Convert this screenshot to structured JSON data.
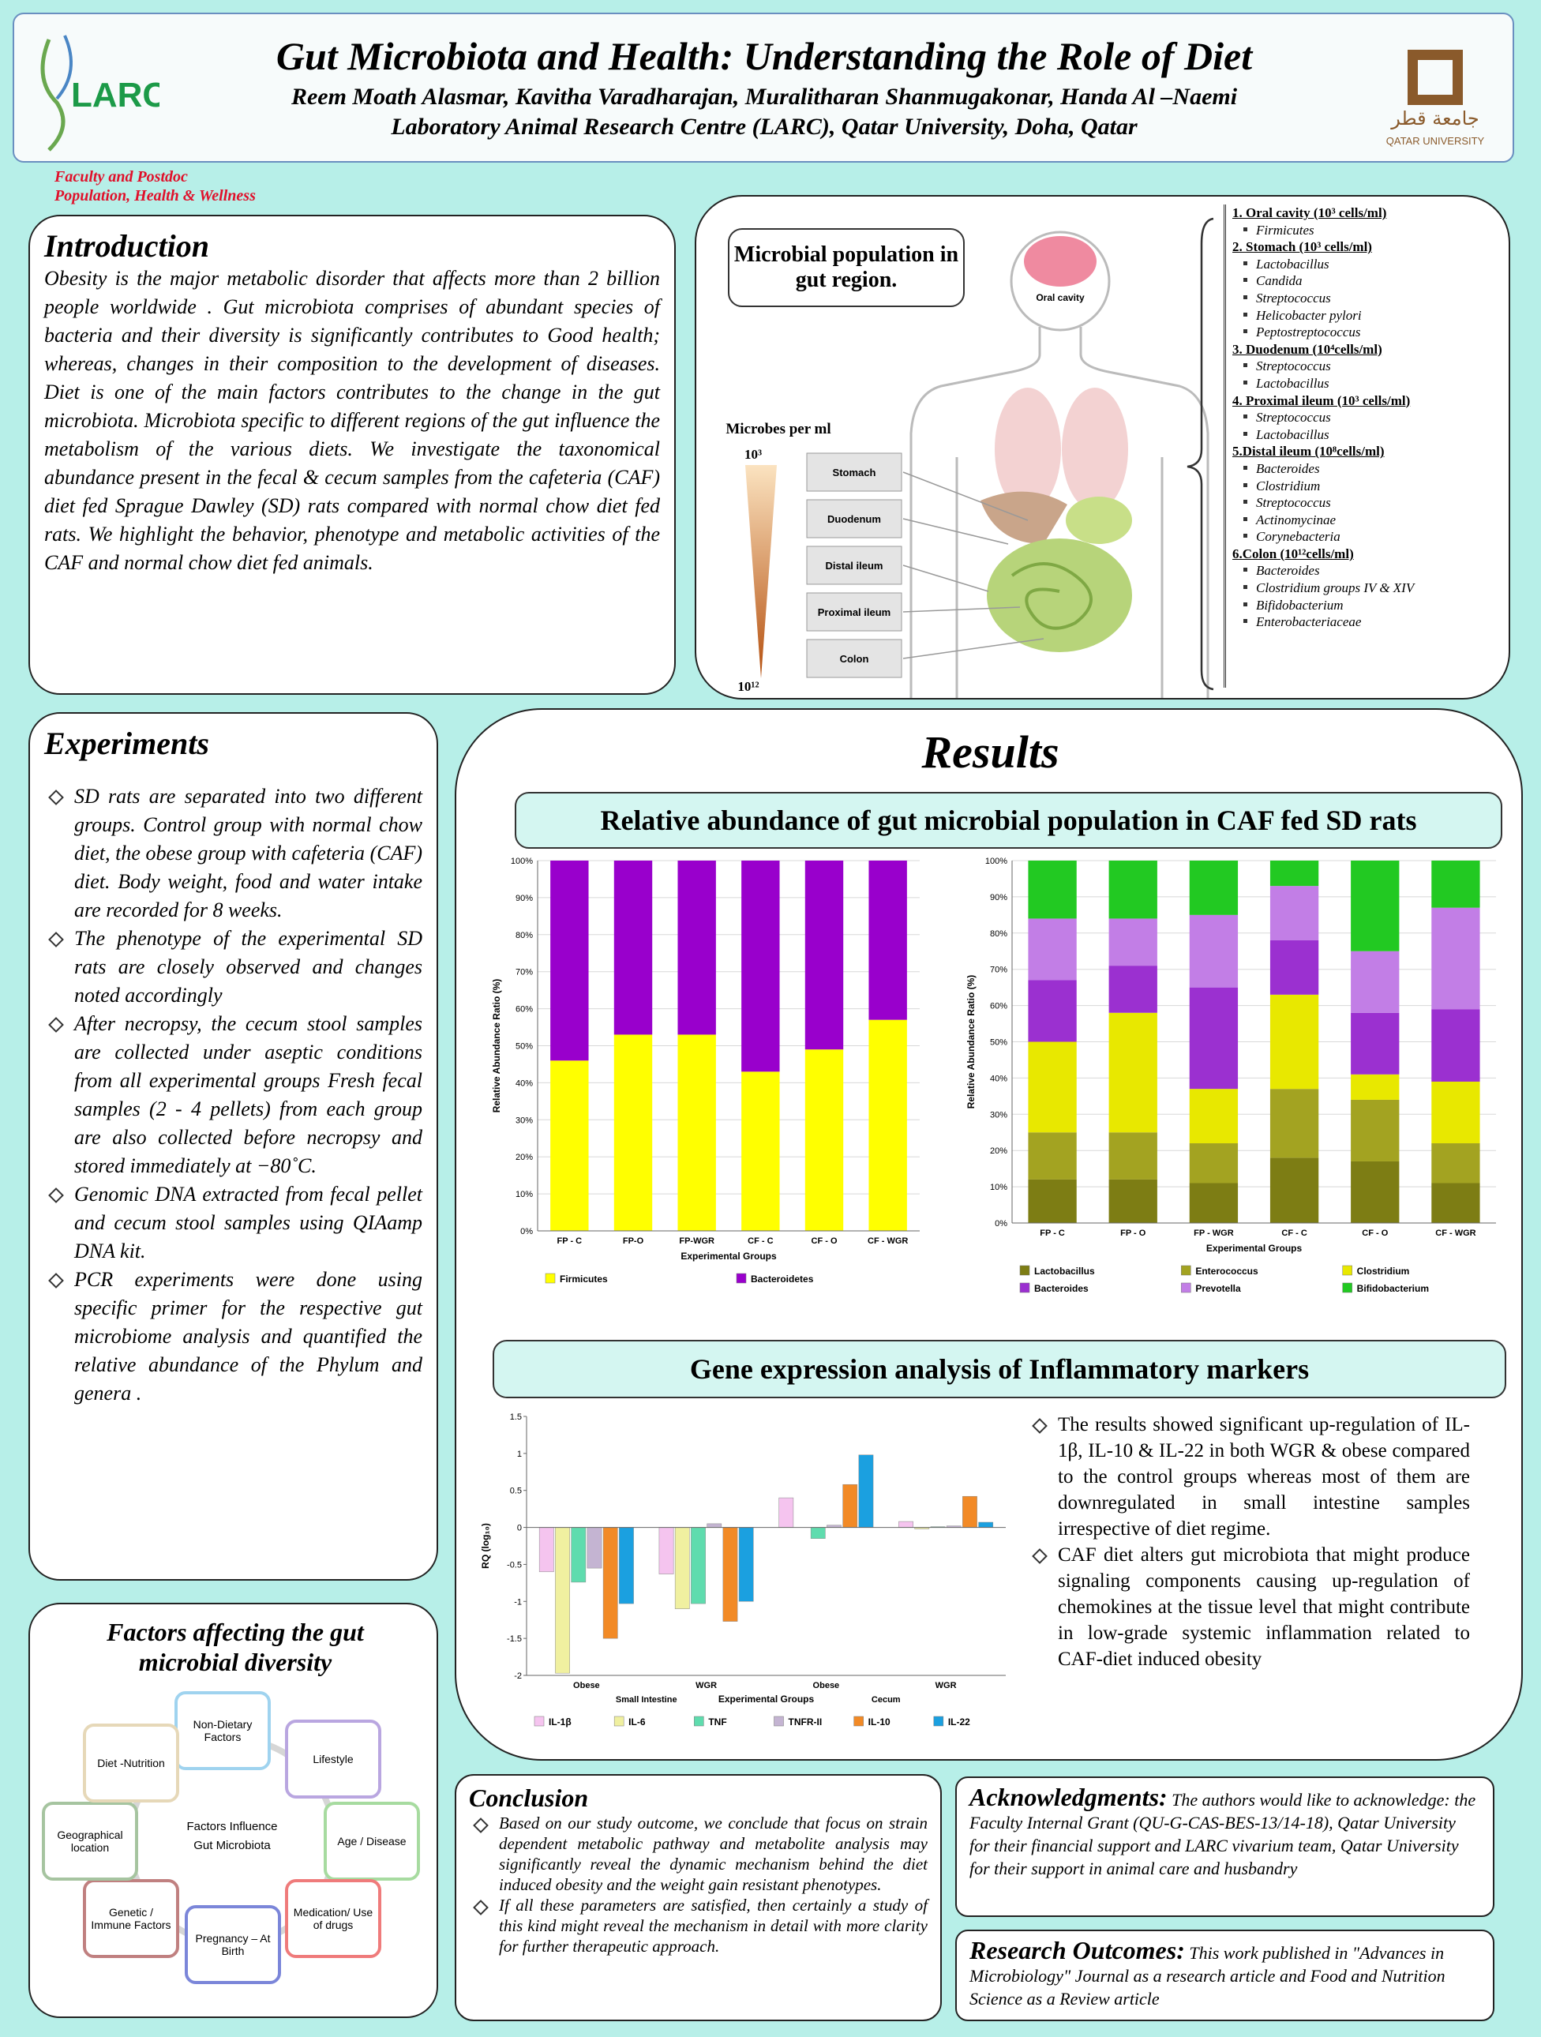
{
  "header": {
    "title": "Gut Microbiota and Health: Understanding the Role of Diet",
    "authors": "Reem Moath Alasmar, Kavitha Varadharajan, Muralitharan Shanmugakonar, Handa Al –Naemi",
    "affiliation": "Laboratory Animal Research Centre (LARC), Qatar University, Doha, Qatar",
    "logo_left": "LARC",
    "logo_right": [
      "جامعة قطر",
      "QATAR UNIVERSITY"
    ],
    "track": [
      "Faculty and Postdoc",
      "Population, Health & Wellness"
    ]
  },
  "introduction": {
    "heading": "Introduction",
    "text": "Obesity is the major metabolic disorder that affects more than 2 billion people worldwide . Gut microbiota comprises of abundant species of bacteria and their diversity is significantly contributes to Good health; whereas, changes in their composition to the development of diseases. Diet is one of the main factors contributes to the change in the gut microbiota. Microbiota specific to different regions of the gut influence the metabolism of the various diets. We investigate the taxonomical abundance present in the fecal & cecum samples from the cafeteria (CAF) diet fed Sprague Dawley (SD) rats compared with normal chow diet fed rats. We highlight the behavior, phenotype and metabolic activities of the CAF and normal chow diet fed animals."
  },
  "microbial_population": {
    "title": "Microbial population in gut region.",
    "oral_cavity": "Oral cavity",
    "axis_label": "Microbes per ml",
    "top": "10³",
    "bottom": "10¹²",
    "sections": [
      "Stomach",
      "Duodenum",
      "Distal ileum",
      "Proximal ileum",
      "Colon"
    ],
    "regions": [
      {
        "heading": "1. Oral cavity (10³ cells/ml)",
        "items": [
          "Firmicutes"
        ]
      },
      {
        "heading": "2. Stomach (10³ cells/ml)",
        "items": [
          "Lactobacillus",
          "Candida",
          "Streptococcus",
          "Helicobacter pylori",
          "Peptostreptococcus"
        ]
      },
      {
        "heading": "3. Duodenum (10⁴cells/ml)",
        "items": [
          "Streptococcus",
          "Lactobacillus"
        ]
      },
      {
        "heading": "4. Proximal ileum  (10³ cells/ml)",
        "items": [
          "Streptococcus",
          "Lactobacillus"
        ]
      },
      {
        "heading": "5.Distal ileum (10⁸cells/ml)",
        "items": [
          "Bacteroides",
          "Clostridium",
          "Streptococcus",
          "Actinomycinae",
          "Corynebacteria"
        ]
      },
      {
        "heading": "6.Colon (10¹²cells/ml)",
        "items": [
          "Bacteroides",
          "Clostridium groups IV & XIV",
          "Bifidobacterium",
          "Enterobacteriaceae"
        ]
      }
    ]
  },
  "experiments": {
    "heading": "Experiments",
    "items": [
      "SD rats are separated into two different groups. Control group with normal chow diet, the obese group with cafeteria (CAF) diet. Body weight, food and water intake are recorded for 8 weeks.",
      "The phenotype of the experimental SD rats are closely observed and changes noted accordingly",
      "After necropsy, the cecum stool samples are collected under aseptic conditions from all experimental groups Fresh fecal samples (2 - 4 pellets) from each group are also collected before necropsy and stored immediately at −80˚C.",
      "Genomic DNA extracted from fecal pellet and cecum stool samples using QIAamp DNA kit.",
      "PCR experiments were done using specific primer for the respective gut microbiome analysis and quantified the relative abundance of the Phylum and genera ."
    ]
  },
  "factors": {
    "heading": "Factors affecting the gut microbial diversity",
    "center": "Factors Influence Gut Microbiota",
    "nodes": [
      "Non-Dietary Factors",
      "Lifestyle",
      "Age / Disease",
      "Medication/ Use of drugs",
      "Pregnancy – At Birth",
      "Genetic / Immune Factors",
      "Geographical location",
      "Diet -Nutrition"
    ]
  },
  "results": {
    "heading": "Results",
    "abundance_title": "Relative abundance of gut microbial population in CAF fed SD rats",
    "gene_title": "Gene expression analysis of Inflammatory markers",
    "gene_text": [
      "The results showed significant up-regulation of IL-1β, IL-10 & IL-22 in both WGR & obese compared to the control groups whereas most of them are downregulated in small intestine samples irrespective of diet regime.",
      "CAF diet alters gut microbiota that might produce signaling components causing up-regulation of chemokines at the tissue level that might contribute in low-grade systemic inflammation related to CAF-diet induced obesity"
    ]
  },
  "chart_data": [
    {
      "type": "bar",
      "stacked": true,
      "x_label": "Experimental Groups",
      "y_label": "Relative Abundance Ratio (%)",
      "categories": [
        "FP - C",
        "FP-O",
        "FP-WGR",
        "CF - C",
        "CF - O",
        "CF - WGR"
      ],
      "series": [
        {
          "name": "Firmicutes",
          "color": "#ffff00",
          "values": [
            46,
            53,
            53,
            43,
            49,
            57
          ]
        },
        {
          "name": "Bacteroidetes",
          "color": "#9900cc",
          "values": [
            54,
            47,
            47,
            57,
            51,
            43
          ]
        }
      ],
      "ylim": [
        0,
        100
      ],
      "yticks": [
        {
          "value": 0,
          "label": "0%"
        },
        {
          "value": 10,
          "label": "10%"
        },
        {
          "value": 20,
          "label": "20%"
        },
        {
          "value": 30,
          "label": "30%"
        },
        {
          "value": 40,
          "label": "40%"
        },
        {
          "value": 50,
          "label": "50%"
        },
        {
          "value": 60,
          "label": "60%"
        },
        {
          "value": 70,
          "label": "70%"
        },
        {
          "value": 80,
          "label": "80%"
        },
        {
          "value": 90,
          "label": "90%"
        },
        {
          "value": 100,
          "label": "100%"
        }
      ],
      "grid": true,
      "legend": "bottom"
    },
    {
      "type": "bar",
      "stacked": true,
      "x_label": "Experimental Groups",
      "y_label": "Relative Abundance Ratio (%)",
      "categories": [
        "FP - C",
        "FP - O",
        "FP - WGR",
        "CF - C",
        "CF - O",
        "CF - WGR"
      ],
      "series": [
        {
          "name": "Lactobacillus",
          "color": "#7d7d14",
          "values": [
            12,
            12,
            11,
            18,
            17,
            11
          ]
        },
        {
          "name": "Enterococcus",
          "color": "#a3a321",
          "values": [
            13,
            13,
            11,
            19,
            17,
            11
          ]
        },
        {
          "name": "Clostridium",
          "color": "#e8e800",
          "values": [
            25,
            33,
            15,
            26,
            7,
            17
          ]
        },
        {
          "name": "Bacteroides",
          "color": "#9b30d0",
          "values": [
            17,
            13,
            28,
            15,
            17,
            20
          ]
        },
        {
          "name": "Prevotella",
          "color": "#c27ee6",
          "values": [
            17,
            13,
            20,
            15,
            17,
            28
          ]
        },
        {
          "name": "Bifidobacterium",
          "color": "#22c922",
          "values": [
            16,
            16,
            15,
            7,
            25,
            13
          ]
        }
      ],
      "ylim": [
        0,
        100
      ],
      "yticks": [
        {
          "value": 0,
          "label": "0%"
        },
        {
          "value": 10,
          "label": "10%"
        },
        {
          "value": 20,
          "label": "20%"
        },
        {
          "value": 30,
          "label": "30%"
        },
        {
          "value": 40,
          "label": "40%"
        },
        {
          "value": 50,
          "label": "50%"
        },
        {
          "value": 60,
          "label": "60%"
        },
        {
          "value": 70,
          "label": "70%"
        },
        {
          "value": 80,
          "label": "80%"
        },
        {
          "value": 90,
          "label": "90%"
        },
        {
          "value": 100,
          "label": "100%"
        }
      ],
      "grid": true,
      "legend": "bottom"
    },
    {
      "type": "bar",
      "stacked": false,
      "x_label": "Experimental Groups",
      "y_label": "RQ (log₁₀)",
      "categories": [
        "Obese",
        "WGR",
        "Obese",
        "WGR"
      ],
      "groups": [
        "Small Intestine",
        "Cecum"
      ],
      "series": [
        {
          "name": "IL-1β",
          "color": "#f5c4ef",
          "values": [
            -0.6,
            -0.63,
            0.4,
            0.08
          ]
        },
        {
          "name": "IL-6",
          "color": "#f0f0a0",
          "values": [
            -1.97,
            -1.1,
            0,
            -0.02
          ]
        },
        {
          "name": "TNF",
          "color": "#5fdcae",
          "values": [
            -0.74,
            -1.03,
            -0.15,
            0.01
          ]
        },
        {
          "name": "TNFR-II",
          "color": "#c4b4d2",
          "values": [
            -0.55,
            0.05,
            0.03,
            0.02
          ]
        },
        {
          "name": "IL-10",
          "color": "#f28a26",
          "values": [
            -1.5,
            -1.27,
            0.58,
            0.42
          ]
        },
        {
          "name": "IL-22",
          "color": "#1ba0e0",
          "values": [
            -1.03,
            -1,
            0.98,
            0.07
          ]
        }
      ],
      "ylim": [
        -2,
        1.5
      ],
      "yticks": [
        -2,
        -1.5,
        -1,
        -0.5,
        0,
        0.5,
        1,
        1.5
      ],
      "grid": false,
      "legend": "bottom"
    }
  ],
  "conclusion": {
    "heading": "Conclusion",
    "items": [
      "Based on our study outcome, we conclude that focus on strain dependent metabolic pathway and metabolite analysis may significantly reveal the dynamic mechanism behind the diet induced obesity and the weight gain resistant phenotypes.",
      "If all these parameters are satisfied, then certainly a study of this kind might reveal the mechanism in detail with more clarity for further therapeutic approach."
    ]
  },
  "acknowledgments": {
    "heading": "Acknowledgments:",
    "text": "The authors would like to acknowledge: the Faculty Internal Grant (QU-G-CAS-BES-13/14-18), Qatar University for their financial support and LARC vivarium team, Qatar University for their support in animal care and husbandry"
  },
  "research_outcomes": {
    "heading": "Research Outcomes:",
    "text": "This work published in \"Advances in Microbiology\" Journal as a research article and Food and Nutrition Science as a Review article"
  }
}
